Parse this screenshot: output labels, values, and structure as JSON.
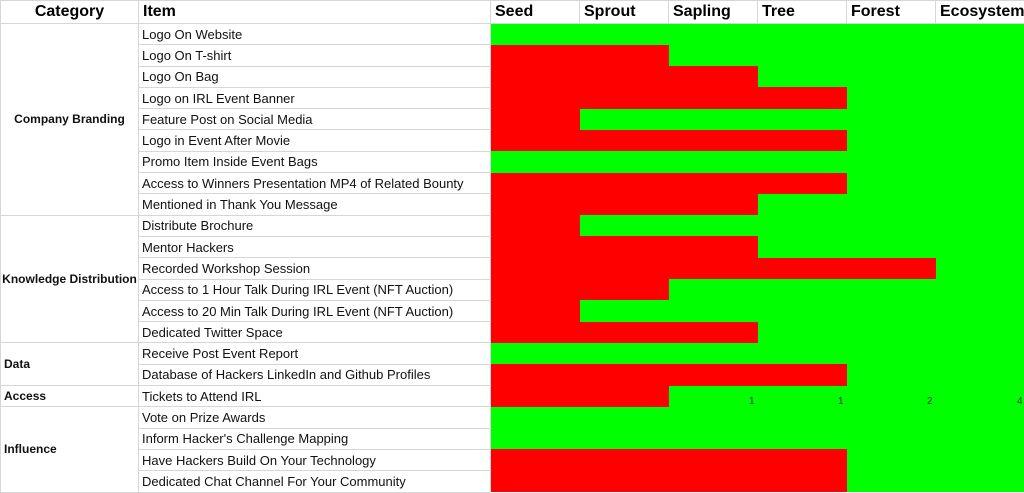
{
  "headers": {
    "category": "Category",
    "item": "Item",
    "levels": [
      "Seed",
      "Sprout",
      "Sapling",
      "Tree",
      "Forest",
      "Ecosystem"
    ]
  },
  "colors": {
    "green": "#00ff00",
    "red": "#ff0000"
  },
  "groups": [
    {
      "category": "Company Branding",
      "align": "center",
      "rows": [
        {
          "item": "Logo On Website",
          "cells": [
            "green",
            "green",
            "green",
            "green",
            "green",
            "green"
          ],
          "values": [
            "",
            "",
            "",
            "",
            "",
            ""
          ]
        },
        {
          "item": "Logo On T-shirt",
          "cells": [
            "red",
            "red",
            "green",
            "green",
            "green",
            "green"
          ],
          "values": [
            "",
            "",
            "",
            "",
            "",
            ""
          ]
        },
        {
          "item": "Logo On Bag",
          "cells": [
            "red",
            "red",
            "red",
            "green",
            "green",
            "green"
          ],
          "values": [
            "",
            "",
            "",
            "",
            "",
            ""
          ]
        },
        {
          "item": "Logo on IRL Event Banner",
          "cells": [
            "red",
            "red",
            "red",
            "red",
            "green",
            "green"
          ],
          "values": [
            "",
            "",
            "",
            "",
            "",
            ""
          ]
        },
        {
          "item": "Feature Post on Social Media",
          "cells": [
            "red",
            "green",
            "green",
            "green",
            "green",
            "green"
          ],
          "values": [
            "",
            "",
            "",
            "",
            "",
            ""
          ]
        },
        {
          "item": "Logo in Event After Movie",
          "cells": [
            "red",
            "red",
            "red",
            "red",
            "green",
            "green"
          ],
          "values": [
            "",
            "",
            "",
            "",
            "",
            ""
          ]
        },
        {
          "item": "Promo Item Inside Event Bags",
          "cells": [
            "green",
            "green",
            "green",
            "green",
            "green",
            "green"
          ],
          "values": [
            "",
            "",
            "",
            "",
            "",
            ""
          ]
        },
        {
          "item": "Access to Winners Presentation MP4 of Related Bounty",
          "cells": [
            "red",
            "red",
            "red",
            "red",
            "green",
            "green"
          ],
          "values": [
            "",
            "",
            "",
            "",
            "",
            ""
          ]
        },
        {
          "item": "Mentioned in Thank You Message",
          "cells": [
            "red",
            "red",
            "red",
            "green",
            "green",
            "green"
          ],
          "values": [
            "",
            "",
            "",
            "",
            "",
            ""
          ]
        }
      ]
    },
    {
      "category": "Knowledge Distribution",
      "align": "center",
      "rows": [
        {
          "item": "Distribute Brochure",
          "cells": [
            "red",
            "green",
            "green",
            "green",
            "green",
            "green"
          ],
          "values": [
            "",
            "",
            "",
            "",
            "",
            ""
          ]
        },
        {
          "item": "Mentor Hackers",
          "cells": [
            "red",
            "red",
            "red",
            "green",
            "green",
            "green"
          ],
          "values": [
            "",
            "",
            "",
            "",
            "",
            ""
          ]
        },
        {
          "item": "Recorded Workshop Session",
          "cells": [
            "red",
            "red",
            "red",
            "red",
            "red",
            "green"
          ],
          "values": [
            "",
            "",
            "",
            "",
            "",
            ""
          ]
        },
        {
          "item": "Access to 1 Hour Talk During IRL Event (NFT Auction)",
          "cells": [
            "red",
            "red",
            "green",
            "green",
            "green",
            "green"
          ],
          "values": [
            "",
            "",
            "",
            "",
            "",
            ""
          ]
        },
        {
          "item": "Access to 20 Min Talk During IRL Event (NFT Auction)",
          "cells": [
            "red",
            "green",
            "green",
            "green",
            "green",
            "green"
          ],
          "values": [
            "",
            "",
            "",
            "",
            "",
            ""
          ]
        },
        {
          "item": "Dedicated Twitter Space",
          "cells": [
            "red",
            "red",
            "red",
            "green",
            "green",
            "green"
          ],
          "values": [
            "",
            "",
            "",
            "",
            "",
            ""
          ]
        }
      ]
    },
    {
      "category": "Data",
      "align": "left",
      "rows": [
        {
          "item": "Receive Post Event Report",
          "cells": [
            "green",
            "green",
            "green",
            "green",
            "green",
            "green"
          ],
          "values": [
            "",
            "",
            "",
            "",
            "",
            ""
          ]
        },
        {
          "item": "Database of Hackers LinkedIn and Github Profiles",
          "cells": [
            "red",
            "red",
            "red",
            "red",
            "green",
            "green"
          ],
          "values": [
            "",
            "",
            "",
            "",
            "",
            ""
          ]
        }
      ]
    },
    {
      "category": "Access",
      "align": "left",
      "rows": [
        {
          "item": "Tickets to Attend IRL",
          "cells": [
            "red",
            "red",
            "green",
            "green",
            "green",
            "green"
          ],
          "values": [
            "",
            "",
            "1",
            "1",
            "2",
            "4"
          ]
        }
      ]
    },
    {
      "category": "Influence",
      "align": "left",
      "rows": [
        {
          "item": "Vote on Prize Awards",
          "cells": [
            "green",
            "green",
            "green",
            "green",
            "green",
            "green"
          ],
          "values": [
            "",
            "",
            "",
            "",
            "",
            ""
          ]
        },
        {
          "item": "Inform Hacker's Challenge Mapping",
          "cells": [
            "green",
            "green",
            "green",
            "green",
            "green",
            "green"
          ],
          "values": [
            "",
            "",
            "",
            "",
            "",
            ""
          ]
        },
        {
          "item": "Have Hackers Build On Your Technology",
          "cells": [
            "red",
            "red",
            "red",
            "red",
            "green",
            "green"
          ],
          "values": [
            "",
            "",
            "",
            "",
            "",
            ""
          ]
        },
        {
          "item": "Dedicated Chat Channel For Your Community",
          "cells": [
            "red",
            "red",
            "red",
            "red",
            "green",
            "green"
          ],
          "values": [
            "",
            "",
            "",
            "",
            "",
            ""
          ]
        }
      ]
    }
  ]
}
